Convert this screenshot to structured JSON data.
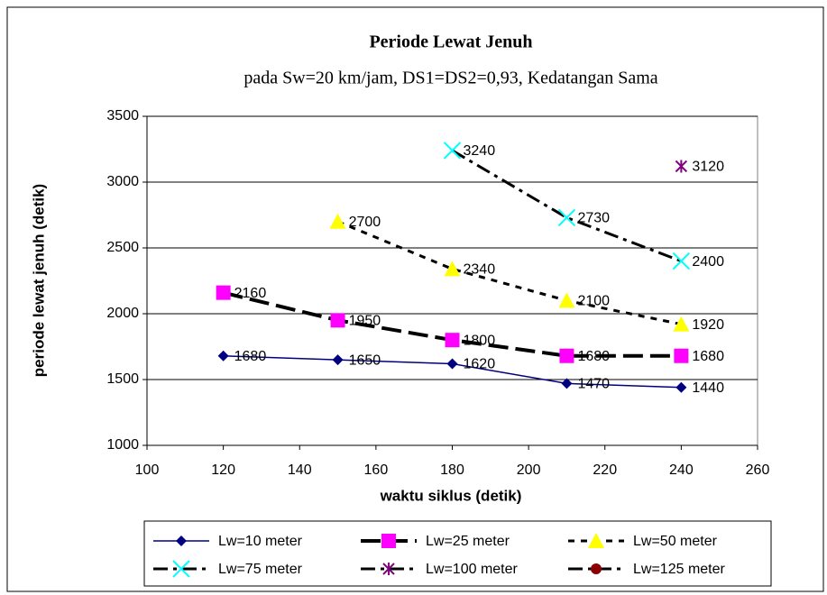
{
  "chart_data": {
    "type": "line",
    "title": "Periode Lewat Jenuh",
    "subtitle": "pada Sw=20 km/jam, DS1=DS2=0,93, Kedatangan Sama",
    "x_label": "waktu siklus (detik)",
    "y_label": "periode lewat jenuh (detik)",
    "x": [
      120,
      150,
      180,
      210,
      240
    ],
    "xlim": [
      100,
      260
    ],
    "xticks": [
      100,
      120,
      140,
      160,
      180,
      200,
      220,
      240,
      260
    ],
    "ylim": [
      1000,
      3500
    ],
    "yticks": [
      1000,
      1500,
      2000,
      2500,
      3000,
      3500
    ],
    "grid": true,
    "legend": "bottom",
    "series": [
      {
        "name": "Lw=10 meter",
        "color": "#000080",
        "marker": "diamond",
        "marker_color": "#000080",
        "dash": "solid",
        "values": [
          1680,
          1650,
          1620,
          1470,
          1440
        ]
      },
      {
        "name": "Lw=25 meter",
        "color": "#000000",
        "marker": "square",
        "marker_color": "#ff00ff",
        "dash": "long",
        "values": [
          2160,
          1950,
          1800,
          1680,
          1680
        ]
      },
      {
        "name": "Lw=50 meter",
        "color": "#000000",
        "marker": "triangle",
        "marker_color": "#ffff00",
        "dash": "short",
        "values": [
          null,
          2700,
          2340,
          2100,
          1920
        ]
      },
      {
        "name": "Lw=75 meter",
        "color": "#000000",
        "marker": "x",
        "marker_color": "#00ffff",
        "dash": "dashdot",
        "values": [
          null,
          null,
          3240,
          2730,
          2400
        ]
      },
      {
        "name": "Lw=100 meter",
        "color": "#000000",
        "marker": "asterisk",
        "marker_color": "#800080",
        "dash": "dashdot",
        "values": [
          null,
          null,
          null,
          null,
          3120
        ]
      },
      {
        "name": "Lw=125 meter",
        "color": "#000000",
        "marker": "circle",
        "marker_color": "#8b0000",
        "dash": "dashdot",
        "values": [
          null,
          null,
          null,
          null,
          null
        ]
      }
    ]
  }
}
